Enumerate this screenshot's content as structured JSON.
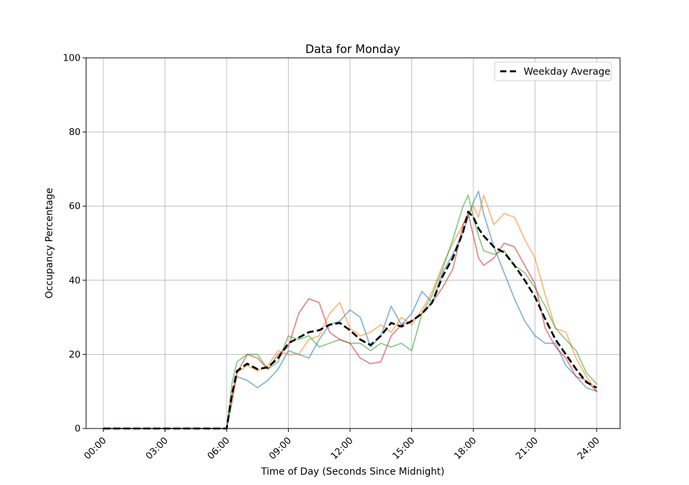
{
  "figure": {
    "background": "#ffffff",
    "text_color": "#000000",
    "spine_color": "#000000"
  },
  "chart_data": {
    "type": "line",
    "title": "Data for Monday",
    "xlabel": "Time of Day (Seconds Since Midnight)",
    "ylabel": "Occupancy Percentage",
    "ylim": [
      0,
      100
    ],
    "xlim_hours": [
      -0.84,
      25.14
    ],
    "grid": true,
    "grid_color": "#b0b0b0",
    "x_tick_hours": [
      0,
      3,
      6,
      9,
      12,
      15,
      18,
      21,
      24
    ],
    "x_tick_labels": [
      "00:00",
      "03:00",
      "06:00",
      "09:00",
      "12:00",
      "15:00",
      "18:00",
      "21:00",
      "24:00"
    ],
    "y_ticks": [
      0,
      20,
      40,
      60,
      80,
      100
    ],
    "y_tick_labels": [
      "0",
      "20",
      "40",
      "60",
      "80",
      "100"
    ],
    "legend": {
      "position": "upper right",
      "entries": [
        {
          "label": "Weekday Average",
          "color": "#000000",
          "style": "dashed"
        }
      ]
    },
    "x_hours": [
      0,
      0.5,
      1,
      1.5,
      2,
      2.5,
      3,
      3.5,
      4,
      4.5,
      5,
      5.5,
      6,
      6.25,
      6.5,
      7,
      7.5,
      8,
      8.5,
      9,
      9.5,
      10,
      10.5,
      11,
      11.5,
      12,
      12.5,
      13,
      13.5,
      14,
      14.5,
      15,
      15.5,
      16,
      16.5,
      17,
      17.5,
      17.75,
      18,
      18.25,
      18.5,
      19,
      19.5,
      20,
      20.5,
      21,
      21.5,
      22,
      22.5,
      23,
      23.5,
      24
    ],
    "series": [
      {
        "name": "monday-series-1",
        "color": "#1f77b4",
        "opacity": 0.55,
        "width": 1.8,
        "dash": null,
        "values": [
          0,
          0,
          0,
          0,
          0,
          0,
          0,
          0,
          0,
          0,
          0,
          0,
          0,
          9,
          14,
          13,
          11,
          13,
          16,
          21,
          20,
          19,
          24,
          28,
          29,
          32,
          30,
          22,
          25,
          33,
          28,
          31,
          37,
          34,
          42,
          47,
          53,
          57,
          61,
          64,
          58,
          49,
          42,
          35,
          29,
          25,
          23,
          23,
          17,
          14,
          11,
          10
        ]
      },
      {
        "name": "monday-series-2",
        "color": "#ff7f0e",
        "opacity": 0.55,
        "width": 1.8,
        "dash": null,
        "values": [
          0,
          0,
          0,
          0,
          0,
          0,
          0,
          0,
          0,
          0,
          0,
          0,
          0,
          8,
          15,
          17,
          15.5,
          17,
          21,
          20,
          20,
          24,
          25,
          31,
          34,
          27,
          25,
          26,
          28,
          26,
          30,
          28,
          32,
          37,
          44,
          50,
          55,
          58,
          60,
          57,
          63,
          55,
          58,
          57,
          51,
          46,
          36,
          27,
          26,
          19,
          14,
          10
        ]
      },
      {
        "name": "monday-series-3",
        "color": "#2ca02c",
        "opacity": 0.55,
        "width": 1.8,
        "dash": null,
        "values": [
          0,
          0,
          0,
          0,
          0,
          0,
          0,
          0,
          0,
          0,
          0,
          0,
          0,
          12,
          18,
          20,
          20,
          16,
          18,
          25,
          24,
          25,
          22,
          23,
          24,
          23,
          23,
          21,
          23,
          22,
          23,
          21,
          31,
          36,
          43,
          51,
          60,
          63,
          57,
          52,
          48,
          47,
          48,
          44,
          42,
          38,
          33,
          27,
          24,
          21,
          15,
          12
        ]
      },
      {
        "name": "monday-series-4",
        "color": "#d62728",
        "opacity": 0.55,
        "width": 1.8,
        "dash": null,
        "values": [
          0,
          0,
          0,
          0,
          0,
          0,
          0,
          0,
          0,
          0,
          0,
          0,
          0,
          7,
          15,
          20,
          19,
          16,
          20,
          22,
          31,
          35,
          34,
          26,
          24,
          23,
          19,
          17.5,
          18,
          25,
          28,
          29,
          31,
          34,
          38,
          43,
          55,
          58,
          52,
          46,
          44,
          46,
          50,
          49,
          44,
          39,
          27,
          22,
          19,
          14,
          13,
          10
        ]
      },
      {
        "name": "Weekday Average",
        "color": "#000000",
        "opacity": 1,
        "width": 2.8,
        "dash": "10 4.5",
        "values": [
          0,
          0,
          0,
          0,
          0,
          0,
          0,
          0,
          0,
          0,
          0,
          0,
          0,
          9,
          15.5,
          17.5,
          16,
          16.5,
          19,
          23,
          24.5,
          26,
          26.5,
          28,
          28.5,
          26.5,
          24,
          22.5,
          25,
          28.5,
          27.5,
          29,
          31,
          34,
          41,
          46,
          53,
          58.5,
          57,
          54,
          52,
          49,
          47.5,
          44,
          40,
          35.5,
          29.5,
          24,
          20,
          16,
          12.5,
          11
        ]
      }
    ]
  }
}
